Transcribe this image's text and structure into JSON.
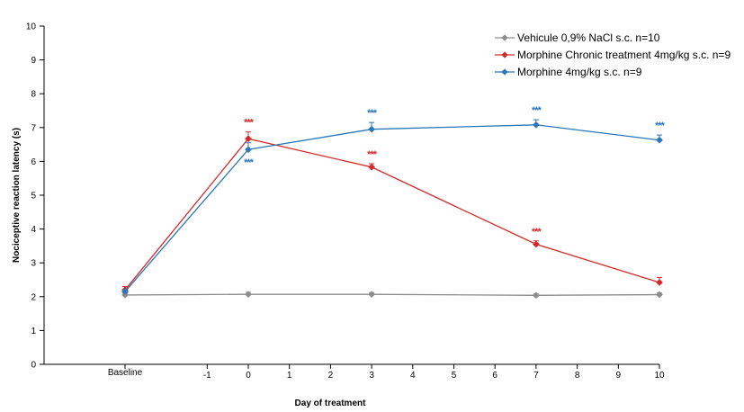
{
  "chart_data": {
    "type": "line",
    "title": "",
    "xlabel": "Day of treatment",
    "ylabel": "Nociceptive reaction latency (s)",
    "ylim": [
      0,
      10
    ],
    "yticks": [
      "0",
      "1",
      "2",
      "3",
      "4",
      "5",
      "6",
      "7",
      "8",
      "9",
      "10"
    ],
    "xticks": [
      "Baseline",
      "-1",
      "0",
      "1",
      "2",
      "3",
      "4",
      "5",
      "6",
      "7",
      "8",
      "9",
      "10"
    ],
    "x": [
      "Baseline",
      "0",
      "3",
      "7",
      "10"
    ],
    "grid": false,
    "legend_position": "top-right",
    "series": [
      {
        "name": "Vehicule 0,9% NaCl s.c. n=10",
        "color": "#8c8c8c",
        "marker": "diamond",
        "values": [
          2.05,
          2.07,
          2.07,
          2.04,
          2.06
        ],
        "errors": [
          0.05,
          0.06,
          0.05,
          0.04,
          0.05
        ],
        "significance": [
          "",
          "",
          "",
          "",
          ""
        ],
        "sig_position": [
          "above",
          "above",
          "above",
          "above",
          "above"
        ]
      },
      {
        "name": "Morphine Chronic treatment 4mg/kg s.c. n=9",
        "color": "#d42a2a",
        "marker": "diamond",
        "values": [
          2.2,
          6.67,
          5.83,
          3.55,
          2.42
        ],
        "errors": [
          0.1,
          0.2,
          0.1,
          0.1,
          0.15
        ],
        "significance": [
          "",
          "***",
          "***",
          "***",
          ""
        ],
        "sig_position": [
          "above",
          "above",
          "above",
          "above",
          "above"
        ]
      },
      {
        "name": "Morphine 4mg/kg s.c. n=9",
        "color": "#2a78b8",
        "marker": "diamond",
        "values": [
          2.15,
          6.35,
          6.95,
          7.08,
          6.63
        ],
        "errors": [
          0.05,
          0.2,
          0.2,
          0.15,
          0.15
        ],
        "significance": [
          "",
          "***",
          "***",
          "***",
          "***"
        ],
        "sig_position": [
          "above",
          "below",
          "above",
          "above",
          "above"
        ]
      }
    ]
  }
}
